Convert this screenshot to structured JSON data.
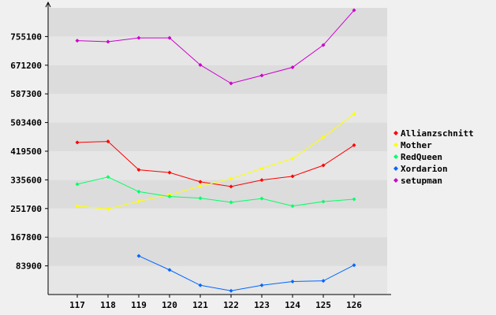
{
  "chart_data": {
    "type": "line",
    "title": "",
    "xlabel": "",
    "ylabel": "",
    "categories": [
      "117",
      "118",
      "119",
      "120",
      "121",
      "122",
      "123",
      "124",
      "125",
      "126"
    ],
    "yticks": [
      83900,
      167800,
      251700,
      335600,
      419500,
      503400,
      587300,
      671200,
      755100
    ],
    "ylim": [
      0,
      839000
    ],
    "grid": "horizontal bands",
    "legend_position": "right",
    "series": [
      {
        "name": "Allianzschnitt",
        "color": "#ff0000",
        "values": [
          445000,
          448000,
          365000,
          357000,
          330000,
          316000,
          335000,
          346000,
          378000,
          437000
        ]
      },
      {
        "name": "Mother",
        "color": "#ffff00",
        "values": [
          259000,
          250000,
          273000,
          292000,
          317000,
          339000,
          369000,
          398000,
          460000,
          529000
        ]
      },
      {
        "name": "RedQueen",
        "color": "#00ff66",
        "values": [
          323000,
          344000,
          301000,
          287000,
          282000,
          270000,
          281000,
          259000,
          272000,
          279000
        ]
      },
      {
        "name": "Xordarion",
        "color": "#0066ff",
        "values": [
          null,
          null,
          113000,
          72000,
          27000,
          11000,
          27000,
          38000,
          40000,
          86000
        ]
      },
      {
        "name": "setupman",
        "color": "#cc00cc",
        "values": [
          743000,
          740000,
          751000,
          751000,
          672000,
          618000,
          641000,
          665000,
          730000,
          832000
        ]
      }
    ]
  }
}
